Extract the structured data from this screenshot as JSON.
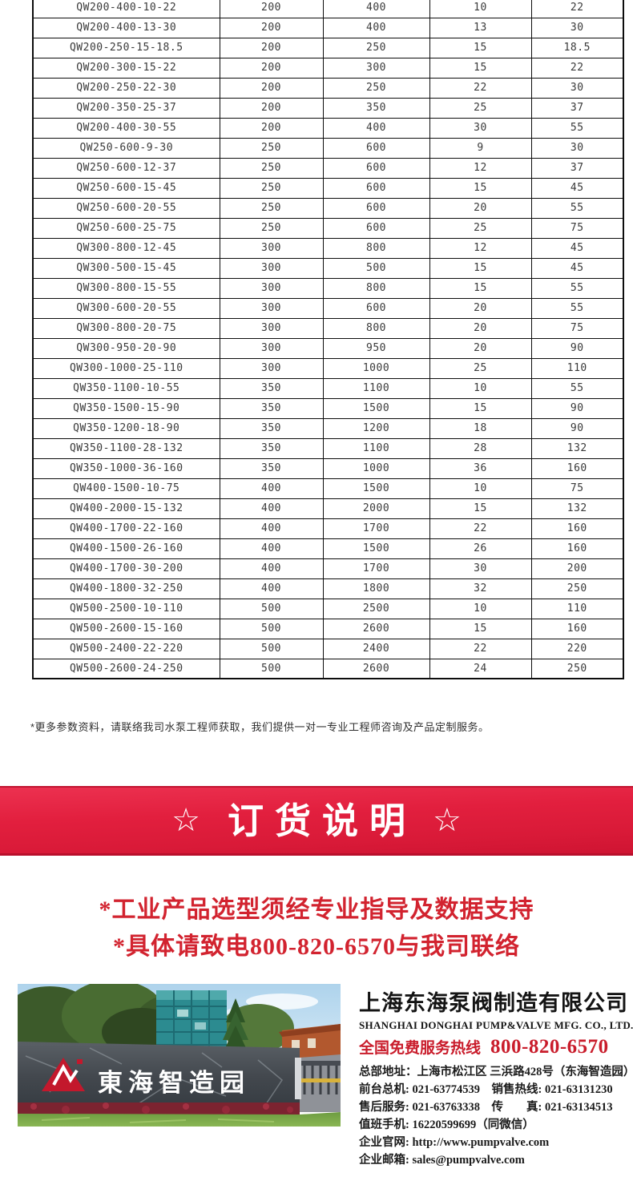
{
  "table": {
    "rows": [
      [
        "QW200-400-10-22",
        "200",
        "400",
        "10",
        "22"
      ],
      [
        "QW200-400-13-30",
        "200",
        "400",
        "13",
        "30"
      ],
      [
        "QW200-250-15-18.5",
        "200",
        "250",
        "15",
        "18.5"
      ],
      [
        "QW200-300-15-22",
        "200",
        "300",
        "15",
        "22"
      ],
      [
        "QW200-250-22-30",
        "200",
        "250",
        "22",
        "30"
      ],
      [
        "QW200-350-25-37",
        "200",
        "350",
        "25",
        "37"
      ],
      [
        "QW200-400-30-55",
        "200",
        "400",
        "30",
        "55"
      ],
      [
        "QW250-600-9-30",
        "250",
        "600",
        "9",
        "30"
      ],
      [
        "QW250-600-12-37",
        "250",
        "600",
        "12",
        "37"
      ],
      [
        "QW250-600-15-45",
        "250",
        "600",
        "15",
        "45"
      ],
      [
        "QW250-600-20-55",
        "250",
        "600",
        "20",
        "55"
      ],
      [
        "QW250-600-25-75",
        "250",
        "600",
        "25",
        "75"
      ],
      [
        "QW300-800-12-45",
        "300",
        "800",
        "12",
        "45"
      ],
      [
        "QW300-500-15-45",
        "300",
        "500",
        "15",
        "45"
      ],
      [
        "QW300-800-15-55",
        "300",
        "800",
        "15",
        "55"
      ],
      [
        "QW300-600-20-55",
        "300",
        "600",
        "20",
        "55"
      ],
      [
        "QW300-800-20-75",
        "300",
        "800",
        "20",
        "75"
      ],
      [
        "QW300-950-20-90",
        "300",
        "950",
        "20",
        "90"
      ],
      [
        "QW300-1000-25-110",
        "300",
        "1000",
        "25",
        "110"
      ],
      [
        "QW350-1100-10-55",
        "350",
        "1100",
        "10",
        "55"
      ],
      [
        "QW350-1500-15-90",
        "350",
        "1500",
        "15",
        "90"
      ],
      [
        "QW350-1200-18-90",
        "350",
        "1200",
        "18",
        "90"
      ],
      [
        "QW350-1100-28-132",
        "350",
        "1100",
        "28",
        "132"
      ],
      [
        "QW350-1000-36-160",
        "350",
        "1000",
        "36",
        "160"
      ],
      [
        "QW400-1500-10-75",
        "400",
        "1500",
        "10",
        "75"
      ],
      [
        "QW400-2000-15-132",
        "400",
        "2000",
        "15",
        "132"
      ],
      [
        "QW400-1700-22-160",
        "400",
        "1700",
        "22",
        "160"
      ],
      [
        "QW400-1500-26-160",
        "400",
        "1500",
        "26",
        "160"
      ],
      [
        "QW400-1700-30-200",
        "400",
        "1700",
        "30",
        "200"
      ],
      [
        "QW400-1800-32-250",
        "400",
        "1800",
        "32",
        "250"
      ],
      [
        "QW500-2500-10-110",
        "500",
        "2500",
        "10",
        "110"
      ],
      [
        "QW500-2600-15-160",
        "500",
        "2600",
        "15",
        "160"
      ],
      [
        "QW500-2400-22-220",
        "500",
        "2400",
        "22",
        "220"
      ],
      [
        "QW500-2600-24-250",
        "500",
        "2600",
        "24",
        "250"
      ]
    ]
  },
  "note": "*更多参数资料，请联络我司水泵工程师获取，我们提供一对一专业工程师咨询及产品定制服务。",
  "banner": {
    "star": "☆",
    "title": "订货说明",
    "bg_top": "#ec3150",
    "bg_bottom": "#cf1432"
  },
  "notice": {
    "lines": [
      "*工业产品选型须经专业指导及数据支持",
      "*具体请致电800-820-6570与我司联络"
    ],
    "color": "#d2232f"
  },
  "company": {
    "name_cn": "上海东海泵阀制造有限公司",
    "name_en": "SHANGHAI DONGHAI PUMP&VALVE MFG. CO., LTD.",
    "hotline_label": "全国免费服务热线",
    "hotline_number": "800-820-6570",
    "hotline_color": "#c91c2b",
    "contacts": [
      "总部地址：上海市松江区 三浜路428号（东海智造园）",
      "前台总机: 021-63774539　销售热线: 021-63131230",
      "售后服务: 021-63763338　传　　真: 021-63134513",
      "值班手机: 16220599699（同微信）",
      "企业官网: http://www.pumpvalve.com",
      "企业邮箱: sales@pumpvalve.com"
    ]
  },
  "photo": {
    "sign_text": "東海智造园"
  }
}
